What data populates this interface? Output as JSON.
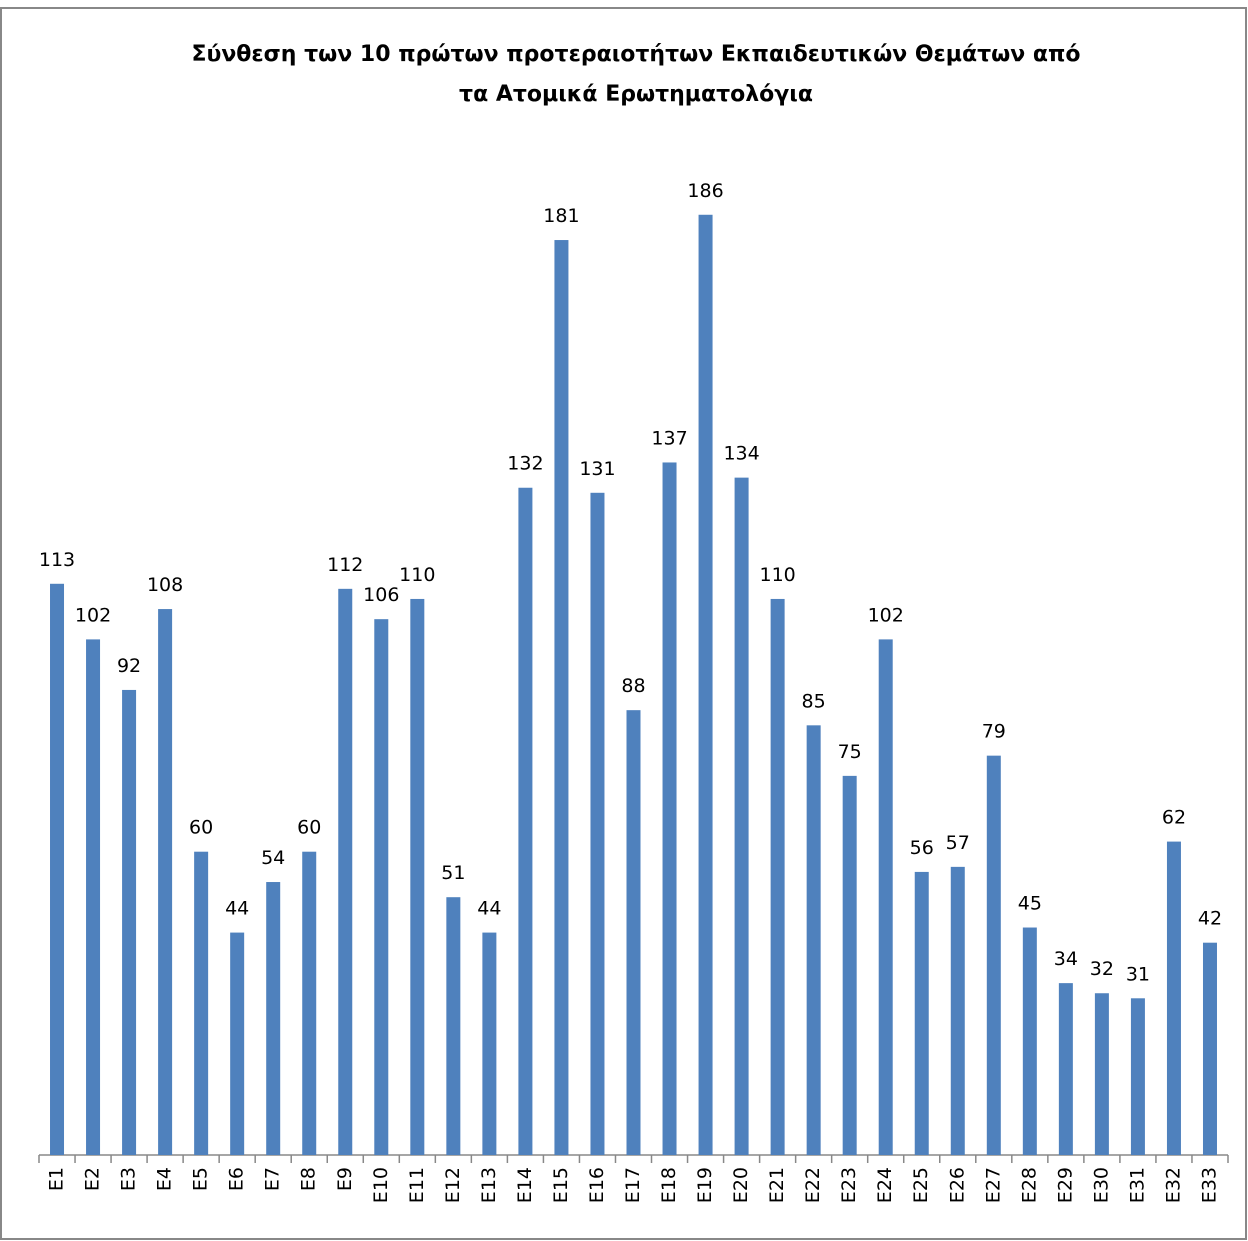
{
  "chart_data": {
    "type": "bar",
    "title": [
      "Σύνθεση των 10 πρώτων προτεραιοτήτων Εκπαιδευτικών Θεμάτων από",
      "τα Ατομικά Ερωτηματολόγια"
    ],
    "categories": [
      "E1",
      "E2",
      "E3",
      "E4",
      "E5",
      "E6",
      "E7",
      "E8",
      "E9",
      "E10",
      "E11",
      "E12",
      "E13",
      "E14",
      "E15",
      "E16",
      "E17",
      "E18",
      "E19",
      "E20",
      "E21",
      "E22",
      "E23",
      "E24",
      "E25",
      "E26",
      "E27",
      "E28",
      "E29",
      "E30",
      "E31",
      "E32",
      "E33"
    ],
    "values": [
      113,
      102,
      92,
      108,
      60,
      44,
      54,
      60,
      112,
      106,
      110,
      51,
      44,
      132,
      181,
      131,
      88,
      137,
      186,
      134,
      110,
      85,
      75,
      102,
      56,
      57,
      79,
      45,
      34,
      32,
      31,
      62,
      42
    ],
    "color": "#4f81bd",
    "ylim": [
      0,
      200
    ]
  }
}
